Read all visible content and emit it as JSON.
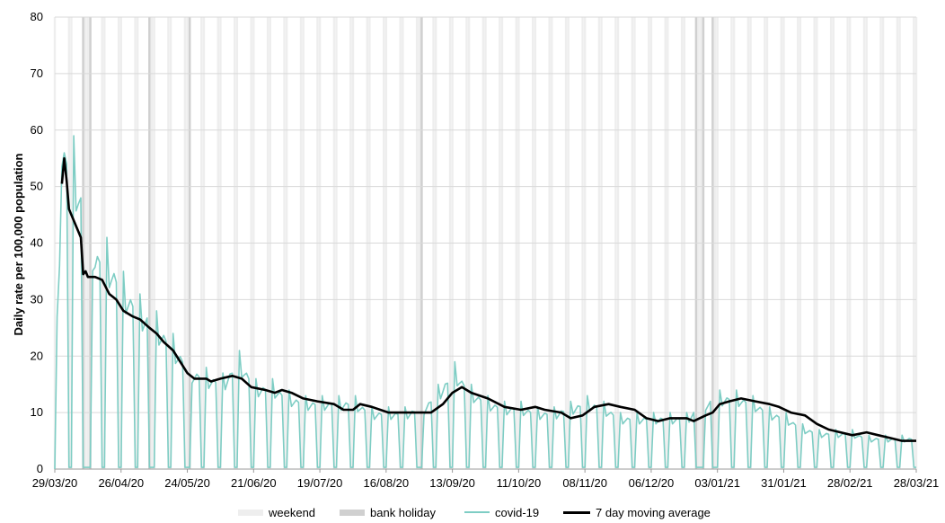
{
  "chart_data": {
    "type": "line",
    "title": "",
    "xlabel": "",
    "ylabel": "Daily rate per 100,000  population",
    "ylim": [
      0,
      80
    ],
    "yticks": [
      0,
      10,
      20,
      30,
      40,
      50,
      60,
      70,
      80
    ],
    "xlim": [
      "2020-03-29",
      "2021-03-28"
    ],
    "xtick_labels": [
      "29/03/20",
      "26/04/20",
      "24/05/20",
      "21/06/20",
      "19/07/20",
      "16/08/20",
      "13/09/20",
      "11/10/20",
      "08/11/20",
      "06/12/20",
      "03/01/21",
      "31/01/21",
      "28/02/21",
      "28/03/21"
    ],
    "bank_holidays": [
      "2020-04-10",
      "2020-04-13",
      "2020-05-08",
      "2020-05-25",
      "2020-08-31",
      "2020-12-25",
      "2020-12-28",
      "2021-01-01"
    ],
    "weekend_shading": true,
    "grid": true,
    "legend_position": "bottom",
    "series": [
      {
        "name": "covid-19",
        "color": "#7ecdc4",
        "pattern": "daily values with near-zero weekends",
        "weekday_levels": [
          [
            "2020-03-30",
            27
          ],
          [
            "2020-04-01",
            63
          ],
          [
            "2020-04-06",
            59
          ],
          [
            "2020-04-15",
            42
          ],
          [
            "2020-04-20",
            41
          ],
          [
            "2020-04-27",
            35
          ],
          [
            "2020-05-04",
            31
          ],
          [
            "2020-05-11",
            28
          ],
          [
            "2020-05-18",
            24
          ],
          [
            "2020-05-26",
            19
          ],
          [
            "2020-06-01",
            18
          ],
          [
            "2020-06-08",
            17
          ],
          [
            "2020-06-15",
            21
          ],
          [
            "2020-06-22",
            16
          ],
          [
            "2020-06-29",
            16
          ],
          [
            "2020-07-06",
            14
          ],
          [
            "2020-07-13",
            13
          ],
          [
            "2020-07-20",
            13
          ],
          [
            "2020-07-27",
            13
          ],
          [
            "2020-08-03",
            13
          ],
          [
            "2020-08-10",
            11
          ],
          [
            "2020-08-17",
            11
          ],
          [
            "2020-08-24",
            11
          ],
          [
            "2020-09-01",
            12
          ],
          [
            "2020-09-07",
            15
          ],
          [
            "2020-09-14",
            19
          ],
          [
            "2020-09-21",
            15
          ],
          [
            "2020-09-28",
            13
          ],
          [
            "2020-10-05",
            12
          ],
          [
            "2020-10-12",
            12
          ],
          [
            "2020-10-19",
            11
          ],
          [
            "2020-10-26",
            11
          ],
          [
            "2020-11-02",
            12
          ],
          [
            "2020-11-09",
            13
          ],
          [
            "2020-11-16",
            12
          ],
          [
            "2020-11-23",
            10
          ],
          [
            "2020-11-30",
            10
          ],
          [
            "2020-12-07",
            10
          ],
          [
            "2020-12-14",
            10
          ],
          [
            "2020-12-21",
            10
          ],
          [
            "2020-12-29",
            13
          ],
          [
            "2021-01-04",
            14
          ],
          [
            "2021-01-11",
            14
          ],
          [
            "2021-01-18",
            13
          ],
          [
            "2021-01-25",
            11
          ],
          [
            "2021-02-01",
            10
          ],
          [
            "2021-02-08",
            8
          ],
          [
            "2021-02-15",
            7
          ],
          [
            "2021-02-22",
            7
          ],
          [
            "2021-03-01",
            7
          ],
          [
            "2021-03-08",
            6
          ],
          [
            "2021-03-15",
            6
          ],
          [
            "2021-03-22",
            6
          ]
        ]
      },
      {
        "name": "7 day moving average",
        "color": "#000000",
        "points": [
          [
            "2020-04-01",
            50.5
          ],
          [
            "2020-04-02",
            55
          ],
          [
            "2020-04-03",
            51
          ],
          [
            "2020-04-04",
            46
          ],
          [
            "2020-04-09",
            41
          ],
          [
            "2020-04-10",
            34.5
          ],
          [
            "2020-04-11",
            35
          ],
          [
            "2020-04-12",
            34
          ],
          [
            "2020-04-15",
            34
          ],
          [
            "2020-04-18",
            33.5
          ],
          [
            "2020-04-21",
            31
          ],
          [
            "2020-04-24",
            30
          ],
          [
            "2020-04-27",
            28
          ],
          [
            "2020-05-01",
            27
          ],
          [
            "2020-05-04",
            26.5
          ],
          [
            "2020-05-08",
            25
          ],
          [
            "2020-05-11",
            24
          ],
          [
            "2020-05-14",
            22.5
          ],
          [
            "2020-05-18",
            21
          ],
          [
            "2020-05-21",
            19
          ],
          [
            "2020-05-24",
            17
          ],
          [
            "2020-05-27",
            16
          ],
          [
            "2020-06-01",
            16
          ],
          [
            "2020-06-03",
            15.5
          ],
          [
            "2020-06-07",
            16
          ],
          [
            "2020-06-12",
            16.5
          ],
          [
            "2020-06-16",
            16
          ],
          [
            "2020-06-20",
            14.5
          ],
          [
            "2020-06-26",
            14
          ],
          [
            "2020-06-30",
            13.5
          ],
          [
            "2020-07-03",
            14
          ],
          [
            "2020-07-07",
            13.5
          ],
          [
            "2020-07-12",
            12.5
          ],
          [
            "2020-07-18",
            12
          ],
          [
            "2020-07-25",
            11.5
          ],
          [
            "2020-07-29",
            10.5
          ],
          [
            "2020-08-02",
            10.5
          ],
          [
            "2020-08-05",
            11.5
          ],
          [
            "2020-08-10",
            11
          ],
          [
            "2020-08-17",
            10
          ],
          [
            "2020-08-24",
            10
          ],
          [
            "2020-08-30",
            10
          ],
          [
            "2020-09-04",
            10
          ],
          [
            "2020-09-09",
            11.5
          ],
          [
            "2020-09-13",
            13.5
          ],
          [
            "2020-09-17",
            14.5
          ],
          [
            "2020-09-21",
            13.5
          ],
          [
            "2020-09-28",
            12.5
          ],
          [
            "2020-10-05",
            11
          ],
          [
            "2020-10-12",
            10.5
          ],
          [
            "2020-10-18",
            11
          ],
          [
            "2020-10-22",
            10.5
          ],
          [
            "2020-10-29",
            10
          ],
          [
            "2020-11-02",
            9
          ],
          [
            "2020-11-07",
            9.5
          ],
          [
            "2020-11-12",
            11
          ],
          [
            "2020-11-18",
            11.5
          ],
          [
            "2020-11-23",
            11
          ],
          [
            "2020-11-29",
            10.5
          ],
          [
            "2020-12-04",
            9
          ],
          [
            "2020-12-09",
            8.5
          ],
          [
            "2020-12-14",
            9
          ],
          [
            "2020-12-21",
            9
          ],
          [
            "2020-12-24",
            8.5
          ],
          [
            "2020-12-29",
            9.5
          ],
          [
            "2021-01-01",
            10
          ],
          [
            "2021-01-04",
            11.5
          ],
          [
            "2021-01-08",
            12
          ],
          [
            "2021-01-13",
            12.5
          ],
          [
            "2021-01-19",
            12
          ],
          [
            "2021-01-25",
            11.5
          ],
          [
            "2021-01-29",
            11
          ],
          [
            "2021-02-03",
            10
          ],
          [
            "2021-02-09",
            9.5
          ],
          [
            "2021-02-14",
            8
          ],
          [
            "2021-02-19",
            7
          ],
          [
            "2021-02-24",
            6.5
          ],
          [
            "2021-03-01",
            6
          ],
          [
            "2021-03-07",
            6.5
          ],
          [
            "2021-03-12",
            6
          ],
          [
            "2021-03-17",
            5.5
          ],
          [
            "2021-03-22",
            5
          ],
          [
            "2021-03-27",
            5
          ],
          [
            "2021-03-28",
            5
          ]
        ]
      }
    ]
  },
  "legend": {
    "weekend": "weekend",
    "bank_holiday": "bank holiday",
    "covid": "covid-19",
    "average": "7 day moving average",
    "weekend_color": "#eeeeee",
    "bank_holiday_color": "#d0d0d0"
  }
}
